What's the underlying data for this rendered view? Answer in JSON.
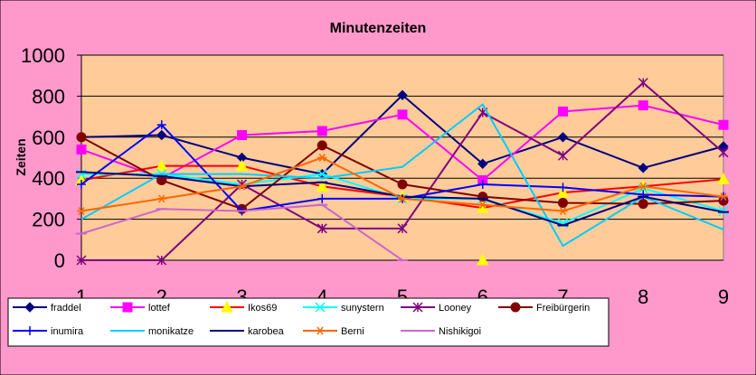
{
  "colors": {
    "outer_background": "#ff99cc",
    "plot_background": "#ffcc99",
    "gridline": "#000000",
    "legend_background": "#ffffff"
  },
  "chart_data": {
    "type": "line",
    "title": "Minutenzeiten",
    "xlabel": "",
    "ylabel": "Zeiten",
    "ylim": [
      0,
      1000
    ],
    "yticks": [
      0,
      200,
      400,
      600,
      800,
      1000
    ],
    "categories": [
      "1",
      "2",
      "3",
      "4",
      "5",
      "6",
      "7",
      "8",
      "9"
    ],
    "grid": "horizontal",
    "legend_position": "bottom",
    "series": [
      {
        "name": "fraddel",
        "color": "#000080",
        "marker": "diamond",
        "values": [
          600,
          610,
          500,
          420,
          805,
          470,
          600,
          450,
          555
        ]
      },
      {
        "name": "lottef",
        "color": "#ff00ff",
        "marker": "square",
        "values": [
          540,
          400,
          610,
          630,
          710,
          390,
          725,
          755,
          660
        ]
      },
      {
        "name": "Ikos69",
        "color": "#ff0000",
        "marker": "triangle",
        "values": [
          390,
          460,
          460,
          360,
          310,
          255,
          330,
          360,
          395
        ]
      },
      {
        "name": "sunystern",
        "color": "#00ffff",
        "marker": "x",
        "values": [
          420,
          420,
          370,
          420,
          300,
          300,
          180,
          350,
          240
        ]
      },
      {
        "name": "Looney",
        "color": "#800080",
        "marker": "star",
        "values": [
          0,
          0,
          370,
          155,
          155,
          720,
          510,
          865,
          525
        ]
      },
      {
        "name": "Freibürgerin",
        "color": "#800000",
        "marker": "circle",
        "values": [
          600,
          390,
          250,
          560,
          370,
          310,
          280,
          275,
          290
        ]
      },
      {
        "name": "inumira",
        "color": "#0000ff",
        "marker": "plus",
        "values": [
          370,
          660,
          240,
          300,
          300,
          370,
          355,
          320,
          310
        ]
      },
      {
        "name": "monikatze",
        "color": "#00ccff",
        "marker": "none",
        "values": [
          200,
          420,
          420,
          400,
          455,
          760,
          70,
          310,
          150
        ]
      },
      {
        "name": "karobea",
        "color": "#000080",
        "marker": "dash",
        "values": [
          430,
          410,
          360,
          380,
          310,
          300,
          170,
          310,
          235
        ]
      },
      {
        "name": "Berni",
        "color": "#ff6600",
        "marker": "asterisk",
        "values": [
          240,
          300,
          360,
          500,
          300,
          270,
          240,
          360,
          310
        ]
      },
      {
        "name": "Nishikigoi",
        "color": "#cc66cc",
        "marker": "dash",
        "values": [
          130,
          250,
          240,
          270,
          0,
          null,
          null,
          null,
          null
        ]
      }
    ],
    "extra_points": [
      {
        "series": "Ikos69",
        "x": "6",
        "y": 0
      }
    ]
  }
}
